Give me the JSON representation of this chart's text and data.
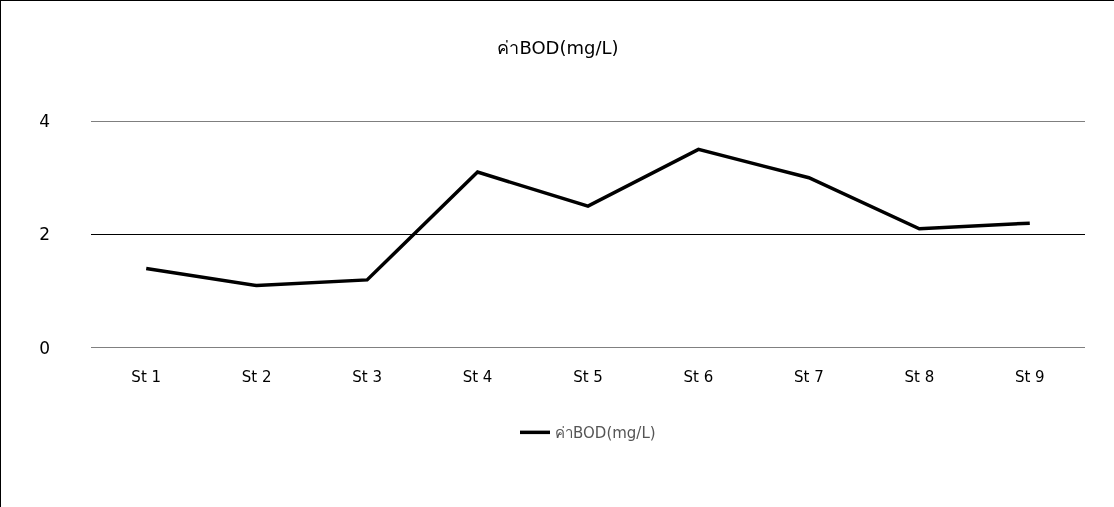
{
  "chart_data": {
    "type": "line",
    "title": "ค่าBOD(mg/L)",
    "categories": [
      "St 1",
      "St 2",
      "St 3",
      "St 4",
      "St 5",
      "St 6",
      "St 7",
      "St 8",
      "St 9"
    ],
    "series": [
      {
        "name": "ค่าBOD(mg/L)",
        "color": "#000000",
        "values": [
          1.4,
          1.1,
          1.2,
          3.1,
          2.5,
          3.5,
          3.0,
          2.1,
          2.2
        ]
      }
    ],
    "ylim": [
      0,
      4
    ],
    "yticks": [
      0,
      2,
      4
    ],
    "grid": "y",
    "legend": "bottom",
    "marker": "none",
    "line_style": "solid"
  }
}
